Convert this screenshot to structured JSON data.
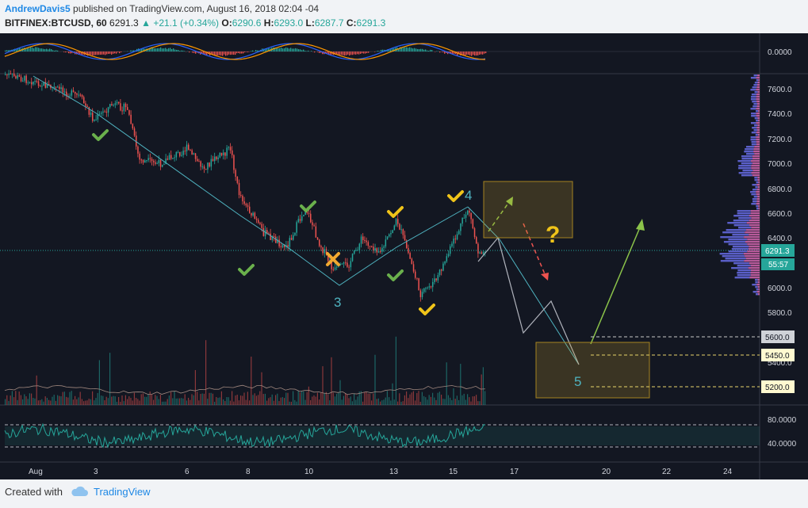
{
  "header": {
    "author": "AndrewDavis5",
    "published": "published on TradingView.com, August 16, 2018 02:04 -04",
    "symbol": "BITFINEX:BTCUSD, 60",
    "last": "6291.3",
    "change": "+21.1 (+0.34%)",
    "open_label": "O:",
    "open": "6290.6",
    "high_label": "H:",
    "high": "6293.0",
    "low_label": "L:",
    "low": "6287.7",
    "close_label": "C:",
    "close": "6291.3"
  },
  "macd": {
    "zero_label": "0.0000"
  },
  "price_axis": {
    "ticks": [
      "7600.0",
      "7400.0",
      "7200.0",
      "7000.0",
      "6800.0",
      "6600.0",
      "6400.0",
      "6000.0",
      "5800.0",
      "5400.0"
    ],
    "current_price": "6291.3",
    "countdown": "55:57",
    "levels": [
      "5600.0",
      "5450.0",
      "5200.0"
    ]
  },
  "rsi": {
    "ticks": [
      "80.0000",
      "40.0000"
    ]
  },
  "time_axis": {
    "ticks": [
      "Aug",
      "3",
      "6",
      "8",
      "10",
      "13",
      "15",
      "17",
      "20",
      "22",
      "24"
    ]
  },
  "wave_labels": [
    "3",
    "4",
    "5"
  ],
  "question_mark": "?",
  "footer": {
    "created_with": "Created with",
    "brand": "TradingView"
  },
  "colors": {
    "up": "#26a69a",
    "down": "#ef5350",
    "wave": "#4fb3c0",
    "check_green": "#6ab04c",
    "check_yellow": "#f0c419",
    "bg": "#131722"
  }
}
